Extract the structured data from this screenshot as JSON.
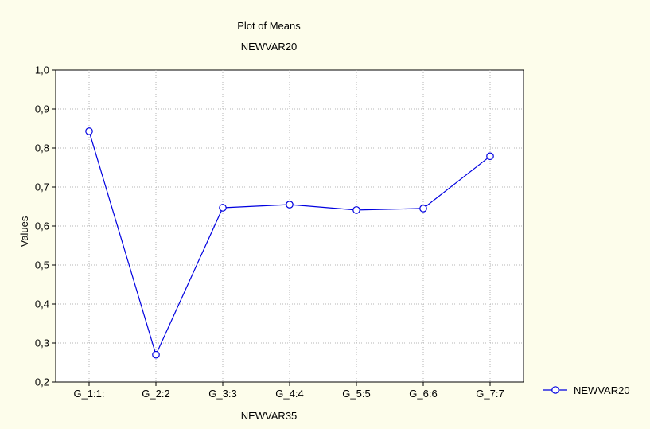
{
  "chart_data": {
    "type": "line",
    "title": "Plot of Means",
    "subtitle": "NEWVAR20",
    "xlabel": "NEWVAR35",
    "ylabel": "Values",
    "categories": [
      "G_1:1:",
      "G_2:2",
      "G_3:3",
      "G_4:4",
      "G_5:5",
      "G_6:6",
      "G_7:7"
    ],
    "series": [
      {
        "name": "NEWVAR20",
        "values": [
          0.843,
          0.27,
          0.647,
          0.655,
          0.641,
          0.645,
          0.779
        ]
      }
    ],
    "ylim": [
      0.2,
      1.0
    ],
    "yticks": [
      "0,2",
      "0,3",
      "0,4",
      "0,5",
      "0,6",
      "0,7",
      "0,8",
      "0,9",
      "1,0"
    ],
    "grid": true,
    "legend_position": "bottom-right",
    "colors": {
      "series": "#0000e0",
      "marker_fill": "#ffffff",
      "background": "#fdfdeb",
      "plot_area": "#ffffff"
    }
  }
}
